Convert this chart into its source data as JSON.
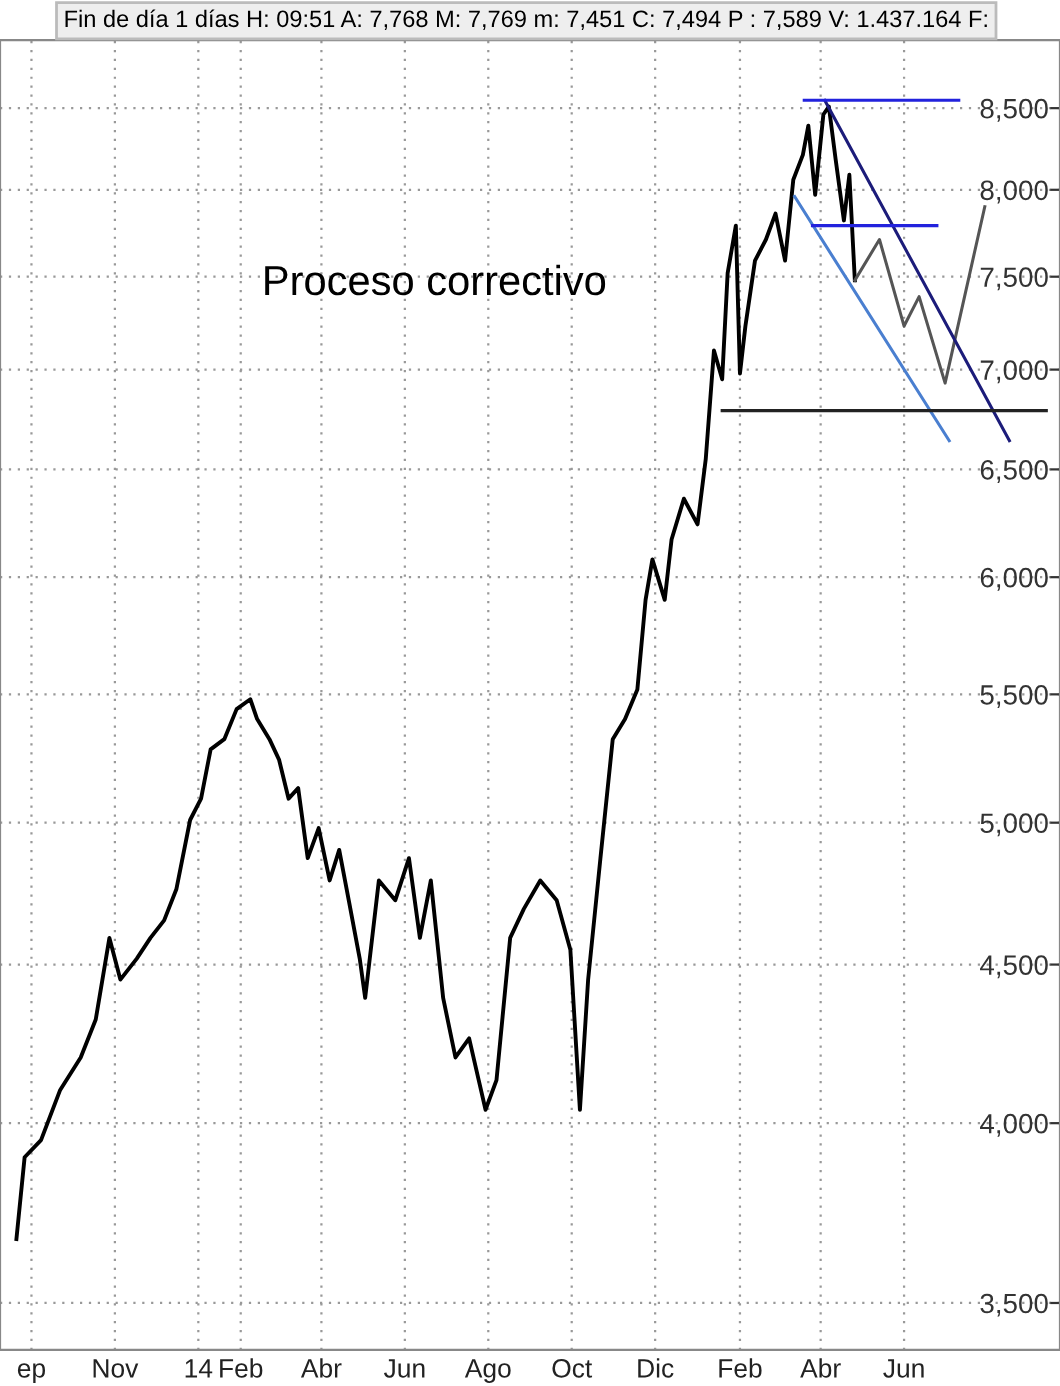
{
  "chart_data": {
    "type": "line",
    "title": "Fin de día 1 días H: 09:51 A: 7,768 M: 7,769 m: 7,451 C: 7,494 P : 7,589 V: 1.437.164 F:",
    "annotations": [
      "Proceso correctivo"
    ],
    "log": "y",
    "grid": true,
    "marker": "none",
    "line_style": "solid",
    "xlim": [
      "2013-08-09",
      "2015-09-23"
    ],
    "xticks": [
      {
        "value": "2013-09-01",
        "label": "ep"
      },
      {
        "value": "2013-11-01",
        "label": "Nov"
      },
      {
        "value": "2014-01-01",
        "label": "14"
      },
      {
        "value": "2014-02-01",
        "label": "Feb"
      },
      {
        "value": "2014-04-01",
        "label": "Abr"
      },
      {
        "value": "2014-06-01",
        "label": "Jun"
      },
      {
        "value": "2014-08-01",
        "label": "Ago"
      },
      {
        "value": "2014-10-01",
        "label": "Oct"
      },
      {
        "value": "2014-12-01",
        "label": "Dic"
      },
      {
        "value": "2015-02-01",
        "label": "Feb"
      },
      {
        "value": "2015-04-01",
        "label": "Abr"
      },
      {
        "value": "2015-06-01",
        "label": "Jun"
      }
    ],
    "ylim": [
      3380,
      8940
    ],
    "yticks": [
      {
        "value": 3500,
        "label": "3,500"
      },
      {
        "value": 4000,
        "label": "4,000"
      },
      {
        "value": 4500,
        "label": "4,500"
      },
      {
        "value": 5000,
        "label": "5,000"
      },
      {
        "value": 5500,
        "label": "5,500"
      },
      {
        "value": 6000,
        "label": "6,000"
      },
      {
        "value": 6500,
        "label": "6,500"
      },
      {
        "value": 7000,
        "label": "7,000"
      },
      {
        "value": 7500,
        "label": "7,500"
      },
      {
        "value": 8000,
        "label": "8,000"
      },
      {
        "value": 8500,
        "label": "8,500"
      }
    ],
    "series": [
      {
        "color": "#000000",
        "x": [
          "2013-08-21",
          "2013-08-27",
          "2013-09-08",
          "2013-09-22",
          "2013-10-07",
          "2013-10-18",
          "2013-10-28",
          "2013-11-05",
          "2013-11-17",
          "2013-11-27",
          "2013-12-07",
          "2013-12-16",
          "2013-12-26",
          "2014-01-03",
          "2014-01-10",
          "2014-01-20",
          "2014-01-29",
          "2014-02-08",
          "2014-02-13",
          "2014-02-22",
          "2014-03-01",
          "2014-03-08",
          "2014-03-15",
          "2014-03-22",
          "2014-03-30",
          "2014-04-07",
          "2014-04-14",
          "2014-04-21",
          "2014-04-29",
          "2014-05-03",
          "2014-05-13",
          "2014-05-25",
          "2014-06-04",
          "2014-06-12",
          "2014-06-20",
          "2014-06-29",
          "2014-07-08",
          "2014-07-18",
          "2014-07-25",
          "2014-07-30",
          "2014-08-07",
          "2014-08-17",
          "2014-08-27",
          "2014-09-08",
          "2014-09-20",
          "2014-09-30",
          "2014-10-07",
          "2014-10-13",
          "2014-10-22",
          "2014-10-31",
          "2014-11-09",
          "2014-11-18",
          "2014-11-24",
          "2014-11-29",
          "2014-12-08",
          "2014-12-13",
          "2014-12-22",
          "2015-01-01",
          "2015-01-07",
          "2015-01-13",
          "2015-01-19",
          "2015-01-23",
          "2015-01-29",
          "2015-02-01",
          "2015-02-05",
          "2015-02-12",
          "2015-02-20",
          "2015-02-27",
          "2015-03-06",
          "2015-03-12",
          "2015-03-19",
          "2015-03-23",
          "2015-03-28",
          "2015-04-03",
          "2015-04-07",
          "2015-04-12",
          "2015-04-18",
          "2015-04-22",
          "2015-04-26"
        ],
        "values": [
          3670,
          3900,
          3950,
          4100,
          4200,
          4320,
          4590,
          4450,
          4520,
          4590,
          4650,
          4760,
          5010,
          5090,
          5280,
          5320,
          5440,
          5480,
          5400,
          5320,
          5240,
          5090,
          5130,
          4870,
          4980,
          4790,
          4900,
          4720,
          4520,
          4390,
          4790,
          4720,
          4870,
          4590,
          4790,
          4390,
          4200,
          4260,
          4130,
          4040,
          4130,
          4590,
          4690,
          4790,
          4720,
          4550,
          4040,
          4450,
          4870,
          5320,
          5400,
          5520,
          5900,
          6080,
          5900,
          6170,
          6360,
          6240,
          6550,
          7100,
          6950,
          7520,
          7790,
          6980,
          7230,
          7590,
          7710,
          7860,
          7590,
          8060,
          8210,
          8390,
          7970,
          8460,
          8510,
          8180,
          7820,
          8090,
          7480
        ]
      },
      {
        "color": "#555555",
        "x": [
          "2015-04-26",
          "2015-05-14",
          "2015-06-01",
          "2015-06-12",
          "2015-07-01",
          "2015-07-30"
        ],
        "values": [
          7480,
          7710,
          7230,
          7390,
          6930,
          7900
        ]
      },
      {
        "color": "#1c1c7a",
        "x": [
          "2015-04-04",
          "2015-08-17"
        ],
        "values": [
          8550,
          6640
        ]
      },
      {
        "color": "#4a7fd0",
        "x": [
          "2015-03-13",
          "2015-07-04"
        ],
        "values": [
          7960,
          6640
        ]
      },
      {
        "color": "#2222dd",
        "x": [
          "2015-03-20",
          "2015-07-11"
        ],
        "values": [
          8550,
          8550
        ]
      },
      {
        "color": "#2222dd",
        "x": [
          "2015-03-26",
          "2015-06-25"
        ],
        "values": [
          7790,
          7790
        ]
      },
      {
        "color": "#222222",
        "x": [
          "2015-01-19",
          "2015-09-13"
        ],
        "values": [
          6790,
          6790
        ]
      }
    ]
  }
}
